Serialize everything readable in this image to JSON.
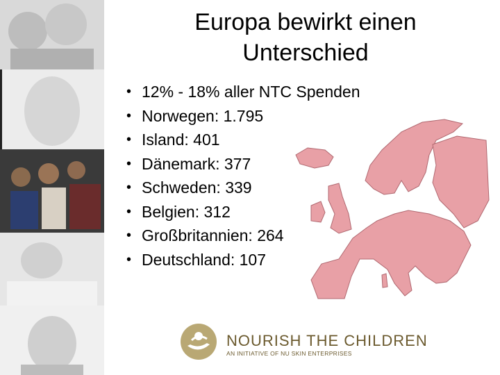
{
  "slide": {
    "title_line1": "Europa bewirkt einen",
    "title_line2": "Unterschied"
  },
  "bullets": [
    "12% - 18% aller NTC Spenden",
    "Norwegen: 1.795",
    "Island: 401",
    "Dänemark: 377",
    "Schweden: 339",
    "Belgien: 312",
    "Großbritannien: 264",
    "Deutschland: 107"
  ],
  "bullet_glyph": "•",
  "logo": {
    "name": "NOURISH THE CHILDREN",
    "tagline": "AN INITIATIVE OF NU SKIN ENTERPRISES"
  },
  "colors": {
    "map_fill": "#e8a0a6",
    "logo_brown": "#6b5a2e",
    "logo_circle": "#b9a874"
  }
}
